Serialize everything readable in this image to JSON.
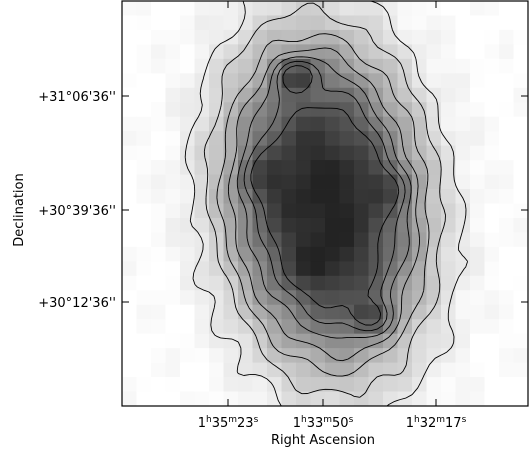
{
  "chart_data": {
    "type": "heatmap",
    "xlabel": "Right Ascension",
    "ylabel": "Declination",
    "x_ticks": [
      {
        "h": "1",
        "m": "35",
        "s": "23"
      },
      {
        "h": "1",
        "m": "33",
        "s": "50"
      },
      {
        "h": "1",
        "m": "32",
        "s": "17"
      }
    ],
    "y_ticks": [
      "+31°06'36''",
      "+30°39'36''",
      "+30°12'36''"
    ],
    "contour_levels": 7,
    "grid": false,
    "legend": "none",
    "colormap": "grayscale",
    "frame_color": "#000000"
  }
}
